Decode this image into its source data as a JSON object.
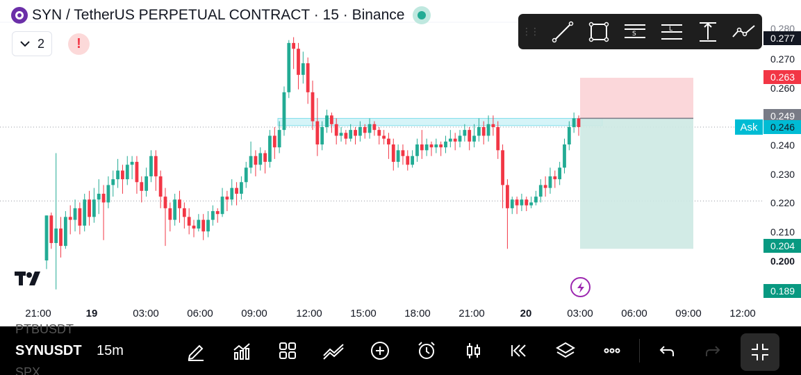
{
  "header": {
    "title": "SYN / TetherUS PERPETUAL CONTRACT · 15 · Binance",
    "collapse_count": "2",
    "alert_symbol": "!"
  },
  "toolbar": {
    "tools": [
      "trend-line-icon",
      "rectangle-icon",
      "fib-retracement-icon",
      "long-position-icon",
      "price-range-icon",
      "path-icon"
    ]
  },
  "price_axis": {
    "ticks": [
      "0.280",
      "0.270",
      "0.260",
      "0.240",
      "0.230",
      "0.220",
      "0.210",
      "0.200"
    ],
    "labels": {
      "last": "0.277",
      "stop": "0.263",
      "entry": "0.249",
      "ask": "0.246",
      "target": "0.204",
      "low": "0.189"
    },
    "ask_tag": "Ask"
  },
  "time_axis": {
    "labels": [
      "21:00",
      "19",
      "03:00",
      "06:00",
      "09:00",
      "12:00",
      "15:00",
      "18:00",
      "21:00",
      "20",
      "03:00",
      "06:00",
      "09:00",
      "12:00"
    ]
  },
  "colors": {
    "up": "#22ab94",
    "down": "#f23645",
    "zone": "#b2ebf2",
    "risk": "#fbd3d6",
    "reward": "#cde9e3"
  },
  "chart_data": {
    "type": "candlestick",
    "symbol": "SYNUSDT",
    "interval": "15m",
    "ylim": [
      0.185,
      0.282
    ],
    "y_ticks": [
      0.28,
      0.27,
      0.26,
      0.25,
      0.24,
      0.23,
      0.22,
      0.21,
      0.2
    ],
    "annotations": {
      "resistance_zone": [
        0.2465,
        0.249
      ],
      "position": {
        "entry": 0.249,
        "stop": 0.263,
        "target": 0.204
      },
      "dotted_lines": [
        0.246,
        0.2205
      ]
    },
    "candles": [
      [
        0.2,
        0.2155,
        0.197,
        0.2155
      ],
      [
        0.2155,
        0.206,
        0.204,
        0.2165
      ],
      [
        0.206,
        0.211,
        0.19,
        0.237
      ],
      [
        0.211,
        0.205,
        0.201,
        0.215
      ],
      [
        0.205,
        0.215,
        0.204,
        0.217
      ],
      [
        0.215,
        0.214,
        0.209,
        0.219
      ],
      [
        0.214,
        0.218,
        0.21,
        0.221
      ],
      [
        0.218,
        0.212,
        0.209,
        0.22
      ],
      [
        0.212,
        0.221,
        0.21,
        0.223
      ],
      [
        0.221,
        0.215,
        0.212,
        0.224
      ],
      [
        0.215,
        0.221,
        0.213,
        0.225
      ],
      [
        0.221,
        0.223,
        0.216,
        0.228
      ],
      [
        0.223,
        0.22,
        0.207,
        0.226
      ],
      [
        0.22,
        0.226,
        0.218,
        0.229
      ],
      [
        0.226,
        0.228,
        0.222,
        0.231
      ],
      [
        0.228,
        0.231,
        0.225,
        0.235
      ],
      [
        0.231,
        0.228,
        0.223,
        0.233
      ],
      [
        0.228,
        0.233,
        0.226,
        0.236
      ],
      [
        0.233,
        0.234,
        0.228,
        0.236
      ],
      [
        0.234,
        0.227,
        0.223,
        0.236
      ],
      [
        0.227,
        0.224,
        0.22,
        0.229
      ],
      [
        0.224,
        0.229,
        0.222,
        0.232
      ],
      [
        0.229,
        0.236,
        0.227,
        0.238
      ],
      [
        0.236,
        0.229,
        0.224,
        0.238
      ],
      [
        0.229,
        0.222,
        0.218,
        0.231
      ],
      [
        0.222,
        0.218,
        0.205,
        0.225
      ],
      [
        0.218,
        0.214,
        0.21,
        0.22
      ],
      [
        0.214,
        0.221,
        0.212,
        0.223
      ],
      [
        0.221,
        0.218,
        0.213,
        0.224
      ],
      [
        0.218,
        0.215,
        0.211,
        0.22
      ],
      [
        0.215,
        0.212,
        0.209,
        0.218
      ],
      [
        0.212,
        0.211,
        0.208,
        0.214
      ],
      [
        0.211,
        0.214,
        0.21,
        0.216
      ],
      [
        0.214,
        0.21,
        0.207,
        0.216
      ],
      [
        0.21,
        0.214,
        0.208,
        0.217
      ],
      [
        0.214,
        0.217,
        0.212,
        0.219
      ],
      [
        0.217,
        0.216,
        0.213,
        0.218
      ],
      [
        0.216,
        0.222,
        0.215,
        0.225
      ],
      [
        0.222,
        0.221,
        0.217,
        0.224
      ],
      [
        0.221,
        0.225,
        0.219,
        0.228
      ],
      [
        0.225,
        0.223,
        0.219,
        0.227
      ],
      [
        0.223,
        0.227,
        0.221,
        0.229
      ],
      [
        0.227,
        0.232,
        0.225,
        0.234
      ],
      [
        0.232,
        0.236,
        0.23,
        0.241
      ],
      [
        0.236,
        0.233,
        0.229,
        0.238
      ],
      [
        0.233,
        0.237,
        0.231,
        0.239
      ],
      [
        0.237,
        0.234,
        0.23,
        0.238
      ],
      [
        0.234,
        0.243,
        0.232,
        0.245
      ],
      [
        0.243,
        0.239,
        0.235,
        0.246
      ],
      [
        0.239,
        0.245,
        0.237,
        0.248
      ],
      [
        0.245,
        0.258,
        0.243,
        0.26
      ],
      [
        0.258,
        0.275,
        0.256,
        0.276
      ],
      [
        0.275,
        0.273,
        0.266,
        0.277
      ],
      [
        0.273,
        0.264,
        0.259,
        0.275
      ],
      [
        0.264,
        0.268,
        0.261,
        0.272
      ],
      [
        0.268,
        0.258,
        0.254,
        0.27
      ],
      [
        0.258,
        0.248,
        0.245,
        0.262
      ],
      [
        0.248,
        0.24,
        0.236,
        0.256
      ],
      [
        0.24,
        0.246,
        0.238,
        0.248
      ],
      [
        0.246,
        0.25,
        0.244,
        0.252
      ],
      [
        0.25,
        0.247,
        0.244,
        0.251
      ],
      [
        0.247,
        0.243,
        0.24,
        0.249
      ],
      [
        0.243,
        0.244,
        0.241,
        0.246
      ],
      [
        0.244,
        0.242,
        0.24,
        0.245
      ],
      [
        0.242,
        0.245,
        0.241,
        0.247
      ],
      [
        0.245,
        0.243,
        0.24,
        0.246
      ],
      [
        0.243,
        0.246,
        0.241,
        0.248
      ],
      [
        0.246,
        0.244,
        0.242,
        0.247
      ],
      [
        0.244,
        0.247,
        0.242,
        0.249
      ],
      [
        0.247,
        0.245,
        0.243,
        0.248
      ],
      [
        0.245,
        0.243,
        0.24,
        0.246
      ],
      [
        0.243,
        0.242,
        0.24,
        0.245
      ],
      [
        0.242,
        0.24,
        0.235,
        0.244
      ],
      [
        0.24,
        0.234,
        0.231,
        0.242
      ],
      [
        0.234,
        0.238,
        0.232,
        0.24
      ],
      [
        0.238,
        0.236,
        0.233,
        0.24
      ],
      [
        0.236,
        0.233,
        0.231,
        0.238
      ],
      [
        0.233,
        0.236,
        0.232,
        0.238
      ],
      [
        0.236,
        0.24,
        0.234,
        0.242
      ],
      [
        0.24,
        0.238,
        0.235,
        0.245
      ],
      [
        0.238,
        0.24,
        0.236,
        0.242
      ],
      [
        0.24,
        0.239,
        0.236,
        0.241
      ],
      [
        0.239,
        0.24,
        0.237,
        0.242
      ],
      [
        0.24,
        0.239,
        0.236,
        0.241
      ],
      [
        0.239,
        0.241,
        0.237,
        0.243
      ],
      [
        0.241,
        0.242,
        0.239,
        0.245
      ],
      [
        0.242,
        0.241,
        0.238,
        0.244
      ],
      [
        0.241,
        0.243,
        0.239,
        0.245
      ],
      [
        0.243,
        0.245,
        0.241,
        0.247
      ],
      [
        0.245,
        0.241,
        0.238,
        0.246
      ],
      [
        0.241,
        0.243,
        0.239,
        0.247
      ],
      [
        0.243,
        0.246,
        0.241,
        0.249
      ],
      [
        0.246,
        0.243,
        0.24,
        0.248
      ],
      [
        0.243,
        0.247,
        0.241,
        0.25
      ],
      [
        0.247,
        0.246,
        0.243,
        0.25
      ],
      [
        0.246,
        0.238,
        0.235,
        0.248
      ],
      [
        0.238,
        0.226,
        0.218,
        0.24
      ],
      [
        0.226,
        0.218,
        0.204,
        0.228
      ],
      [
        0.218,
        0.221,
        0.216,
        0.222
      ],
      [
        0.221,
        0.219,
        0.216,
        0.222
      ],
      [
        0.219,
        0.221,
        0.217,
        0.223
      ],
      [
        0.221,
        0.219,
        0.217,
        0.222
      ],
      [
        0.219,
        0.22,
        0.218,
        0.222
      ],
      [
        0.22,
        0.222,
        0.219,
        0.224
      ],
      [
        0.222,
        0.226,
        0.22,
        0.228
      ],
      [
        0.226,
        0.225,
        0.222,
        0.229
      ],
      [
        0.225,
        0.229,
        0.223,
        0.232
      ],
      [
        0.229,
        0.228,
        0.225,
        0.231
      ],
      [
        0.228,
        0.232,
        0.226,
        0.234
      ],
      [
        0.232,
        0.24,
        0.23,
        0.242
      ],
      [
        0.24,
        0.246,
        0.238,
        0.248
      ],
      [
        0.246,
        0.249,
        0.244,
        0.251
      ],
      [
        0.249,
        0.246,
        0.243,
        0.25
      ]
    ]
  }
}
